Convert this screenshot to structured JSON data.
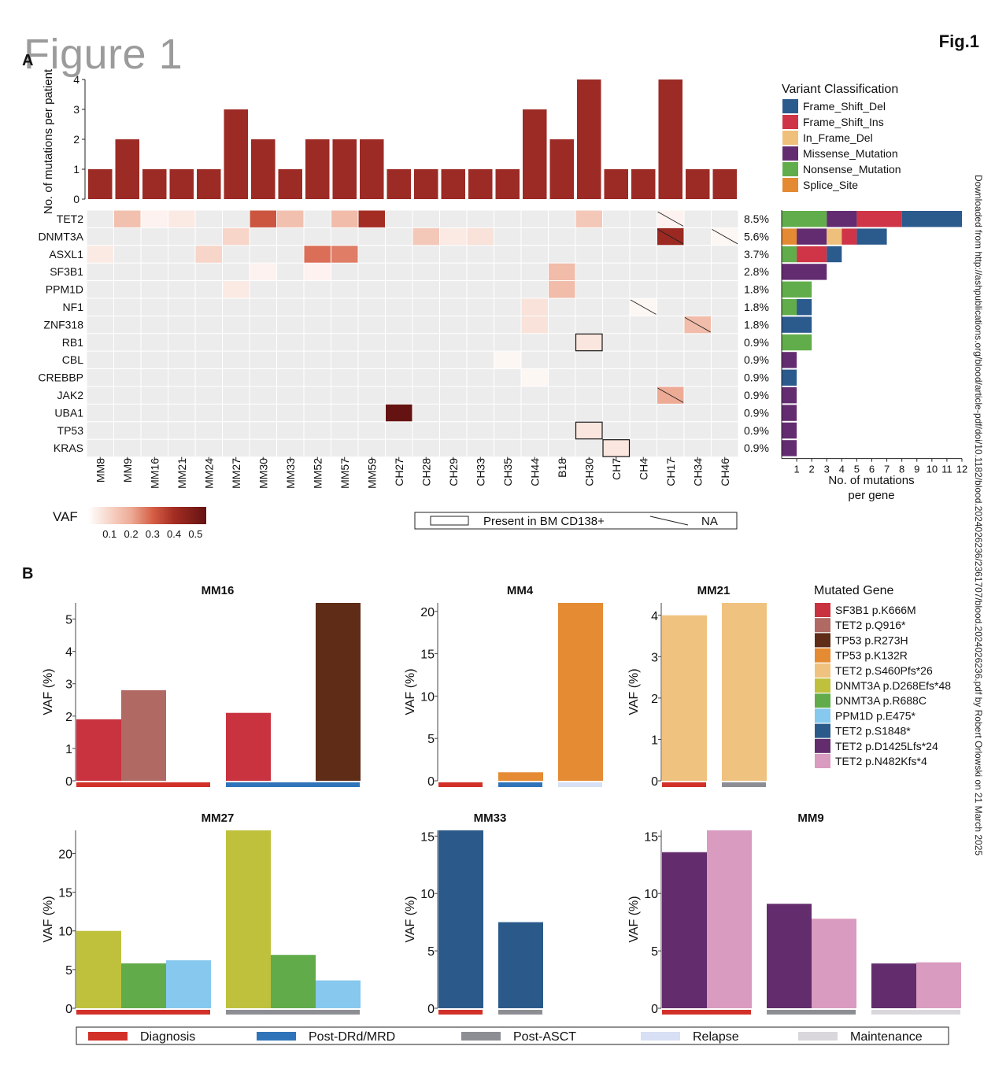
{
  "header": {
    "title": "Figure 1",
    "fig_label": "Fig.1",
    "panel_a": "A",
    "panel_b": "B"
  },
  "side_note": "Downloaded from http://ashpublications.org/blood/article-pdf/doi/10.1182/blood.2024026236/2361707/blood.2024026236.pdf by Robert Orlowski on 21 March 2025",
  "colors": {
    "bar": "#9c2a25",
    "Frame_Shift_Del": "#2b5a8d",
    "Frame_Shift_Ins": "#cf3546",
    "In_Frame_Del": "#efc07c",
    "Missense_Mutation": "#632c70",
    "Nonsense_Mutation": "#62ad4b",
    "Splice_Site": "#e38a33",
    "heat_bg": "#ececec",
    "Diagnosis": "#d2312a",
    "Post-DRd/MRD": "#2f74b9",
    "Post-ASCT": "#8c8e93",
    "Relapse": "#d7e0f4",
    "Maintenance": "#d9d7dc"
  },
  "chart_data": [
    {
      "type": "heatmap",
      "panel": "A",
      "patients": [
        "MM8",
        "MM9",
        "MM16",
        "MM21",
        "MM24",
        "MM27",
        "MM30",
        "MM33",
        "MM52",
        "MM57",
        "MM59",
        "CH27",
        "CH28",
        "CH29",
        "CH33",
        "CH35",
        "CH44",
        "B18",
        "CH30",
        "CH7",
        "CH4",
        "CH17",
        "CH34",
        "CH46"
      ],
      "genes": [
        "TET2",
        "DNMT3A",
        "ASXL1",
        "SF3B1",
        "PPM1D",
        "NF1",
        "ZNF318",
        "RB1",
        "CBL",
        "CREBBP",
        "JAK2",
        "UBA1",
        "TP53",
        "KRAS"
      ],
      "gene_percentages": [
        "8.5%",
        "5.6%",
        "3.7%",
        "2.8%",
        "1.8%",
        "1.8%",
        "1.8%",
        "0.9%",
        "0.9%",
        "0.9%",
        "0.9%",
        "0.9%",
        "0.9%",
        "0.9%"
      ],
      "mutations_per_patient": {
        "ylabel": "No. of mutations per patient",
        "ylim": [
          0,
          4
        ],
        "yticks": [
          0,
          1,
          2,
          3,
          4
        ],
        "values": [
          1,
          2,
          1,
          1,
          1,
          3,
          2,
          1,
          2,
          2,
          2,
          1,
          1,
          1,
          1,
          1,
          3,
          2,
          4,
          1,
          1,
          4,
          1,
          1
        ]
      },
      "vaf_cells": [
        {
          "gene": "TET2",
          "patient": "MM9",
          "vaf": 0.15
        },
        {
          "gene": "TET2",
          "patient": "MM16",
          "vaf": 0.03
        },
        {
          "gene": "TET2",
          "patient": "MM21",
          "vaf": 0.05
        },
        {
          "gene": "TET2",
          "patient": "MM30",
          "vaf": 0.32
        },
        {
          "gene": "TET2",
          "patient": "MM33",
          "vaf": 0.15
        },
        {
          "gene": "TET2",
          "patient": "MM57",
          "vaf": 0.16
        },
        {
          "gene": "TET2",
          "patient": "MM59",
          "vaf": 0.4
        },
        {
          "gene": "TET2",
          "patient": "CH30",
          "vaf": 0.13
        },
        {
          "gene": "TET2",
          "patient": "CH17",
          "vaf": 0.03,
          "na": true
        },
        {
          "gene": "DNMT3A",
          "patient": "MM27",
          "vaf": 0.1
        },
        {
          "gene": "DNMT3A",
          "patient": "CH28",
          "vaf": 0.13
        },
        {
          "gene": "DNMT3A",
          "patient": "CH29",
          "vaf": 0.05
        },
        {
          "gene": "DNMT3A",
          "patient": "CH33",
          "vaf": 0.07
        },
        {
          "gene": "DNMT3A",
          "patient": "CH17",
          "vaf": 0.42,
          "na": true
        },
        {
          "gene": "DNMT3A",
          "patient": "CH46",
          "vaf": 0.02,
          "na": true
        },
        {
          "gene": "ASXL1",
          "patient": "MM8",
          "vaf": 0.05
        },
        {
          "gene": "ASXL1",
          "patient": "MM24",
          "vaf": 0.1
        },
        {
          "gene": "ASXL1",
          "patient": "MM52",
          "vaf": 0.28
        },
        {
          "gene": "ASXL1",
          "patient": "MM57",
          "vaf": 0.26
        },
        {
          "gene": "SF3B1",
          "patient": "MM30",
          "vaf": 0.03
        },
        {
          "gene": "SF3B1",
          "patient": "MM52",
          "vaf": 0.03
        },
        {
          "gene": "SF3B1",
          "patient": "B18",
          "vaf": 0.16
        },
        {
          "gene": "PPM1D",
          "patient": "MM27",
          "vaf": 0.05
        },
        {
          "gene": "PPM1D",
          "patient": "B18",
          "vaf": 0.16
        },
        {
          "gene": "NF1",
          "patient": "CH44",
          "vaf": 0.07
        },
        {
          "gene": "NF1",
          "patient": "CH4",
          "vaf": 0.02,
          "na": true
        },
        {
          "gene": "ZNF318",
          "patient": "CH44",
          "vaf": 0.07
        },
        {
          "gene": "ZNF318",
          "patient": "CH34",
          "vaf": 0.16,
          "na": true
        },
        {
          "gene": "RB1",
          "patient": "CH30",
          "vaf": 0.06,
          "bm": true
        },
        {
          "gene": "CBL",
          "patient": "CH35",
          "vaf": 0.02
        },
        {
          "gene": "CREBBP",
          "patient": "CH44",
          "vaf": 0.02
        },
        {
          "gene": "JAK2",
          "patient": "CH17",
          "vaf": 0.2,
          "na": true
        },
        {
          "gene": "UBA1",
          "patient": "CH27",
          "vaf": 0.55
        },
        {
          "gene": "TP53",
          "patient": "CH30",
          "vaf": 0.06,
          "bm": true
        },
        {
          "gene": "KRAS",
          "patient": "CH7",
          "vaf": 0.06,
          "bm": true
        }
      ],
      "mutations_per_gene": {
        "xlabel": "No. of mutations per gene",
        "xlim": [
          0,
          12
        ],
        "xticks": [
          1,
          2,
          3,
          4,
          5,
          6,
          7,
          8,
          9,
          10,
          11,
          12
        ],
        "stacks": [
          [
            [
              "Nonsense_Mutation",
              3
            ],
            [
              "Missense_Mutation",
              2
            ],
            [
              "Frame_Shift_Ins",
              3
            ],
            [
              "Frame_Shift_Del",
              4
            ]
          ],
          [
            [
              "Splice_Site",
              1
            ],
            [
              "Missense_Mutation",
              2
            ],
            [
              "In_Frame_Del",
              1
            ],
            [
              "Frame_Shift_Ins",
              1
            ],
            [
              "Frame_Shift_Del",
              2
            ]
          ],
          [
            [
              "Nonsense_Mutation",
              1
            ],
            [
              "Frame_Shift_Ins",
              2
            ],
            [
              "Frame_Shift_Del",
              1
            ]
          ],
          [
            [
              "Missense_Mutation",
              3
            ]
          ],
          [
            [
              "Nonsense_Mutation",
              2
            ]
          ],
          [
            [
              "Nonsense_Mutation",
              1
            ],
            [
              "Frame_Shift_Del",
              1
            ]
          ],
          [
            [
              "Frame_Shift_Del",
              2
            ]
          ],
          [
            [
              "Nonsense_Mutation",
              2
            ]
          ],
          [
            [
              "Missense_Mutation",
              1
            ]
          ],
          [
            [
              "Frame_Shift_Del",
              1
            ]
          ],
          [
            [
              "Missense_Mutation",
              1
            ]
          ],
          [
            [
              "Missense_Mutation",
              1
            ]
          ],
          [
            [
              "Missense_Mutation",
              1
            ]
          ],
          [
            [
              "Missense_Mutation",
              1
            ]
          ]
        ]
      },
      "variant_legend": {
        "title": "Variant Classification",
        "items": [
          "Frame_Shift_Del",
          "Frame_Shift_Ins",
          "In_Frame_Del",
          "Missense_Mutation",
          "Nonsense_Mutation",
          "Splice_Site"
        ]
      },
      "vaf_legend": {
        "title": "VAF",
        "ticks": [
          "0.1",
          "0.2",
          "0.3",
          "0.4",
          "0.5"
        ]
      },
      "key_legend": {
        "present": "Present in BM CD138+",
        "na": "NA"
      }
    },
    {
      "type": "bar",
      "panel": "B",
      "ylabel": "VAF (%)",
      "stage_legend": [
        "Diagnosis",
        "Post-DRd/MRD",
        "Post-ASCT",
        "Relapse",
        "Maintenance"
      ],
      "gene_legend": {
        "title": "Mutated Gene",
        "items": [
          {
            "label": "SF3B1 p.K666M",
            "color": "#c9323f"
          },
          {
            "label": "TET2 p.Q916*",
            "color": "#b06a63"
          },
          {
            "label": "TP53 p.R273H",
            "color": "#5e2c17"
          },
          {
            "label": "TP53 p.K132R",
            "color": "#e48b33"
          },
          {
            "label": "TET2 p.S460Pfs*26",
            "color": "#f0c27f"
          },
          {
            "label": "DNMT3A p.D268Efs*48",
            "color": "#bfc13d"
          },
          {
            "label": "DNMT3A p.R688C",
            "color": "#61ab4b"
          },
          {
            "label": "PPM1D p.E475*",
            "color": "#86c8ee"
          },
          {
            "label": "TET2 p.S1848*",
            "color": "#2b5a8a"
          },
          {
            "label": "TET2 p.D1425Lfs*24",
            "color": "#632c6c"
          },
          {
            "label": "TET2 p.N482Kfs*4",
            "color": "#d99bbf"
          }
        ]
      },
      "charts": [
        {
          "title": "MM16",
          "ylim": [
            0,
            5.5
          ],
          "yticks": [
            0,
            1,
            2,
            3,
            4,
            5
          ],
          "groups": [
            {
              "stage": "Diagnosis",
              "values": [
                1.9,
                2.8,
                0
              ]
            },
            {
              "stage": "Post-DRd/MRD",
              "values": [
                2.1,
                0,
                5.5
              ]
            }
          ],
          "gene_colors": [
            "#c9323f",
            "#b06a63",
            "#5e2c17"
          ]
        },
        {
          "title": "MM4",
          "ylim": [
            0,
            21
          ],
          "yticks": [
            0,
            5,
            10,
            15,
            20
          ],
          "groups": [
            {
              "stage": "Diagnosis",
              "values": [
                0
              ]
            },
            {
              "stage": "Post-DRd/MRD",
              "values": [
                1
              ]
            },
            {
              "stage": "Relapse",
              "values": [
                21
              ]
            }
          ],
          "gene_colors": [
            "#e48b33"
          ]
        },
        {
          "title": "MM21",
          "ylim": [
            0,
            4.3
          ],
          "yticks": [
            0,
            1,
            2,
            3,
            4
          ],
          "groups": [
            {
              "stage": "Diagnosis",
              "values": [
                4.0
              ]
            },
            {
              "stage": "Post-ASCT",
              "values": [
                4.3
              ]
            }
          ],
          "gene_colors": [
            "#f0c27f"
          ]
        },
        {
          "title": "MM27",
          "ylim": [
            0,
            23
          ],
          "yticks": [
            0,
            5,
            10,
            15,
            20
          ],
          "groups": [
            {
              "stage": "Diagnosis",
              "values": [
                10,
                5.8,
                6.2
              ]
            },
            {
              "stage": "Post-ASCT",
              "values": [
                23,
                6.9,
                3.6
              ]
            }
          ],
          "gene_colors": [
            "#bfc13d",
            "#61ab4b",
            "#86c8ee"
          ]
        },
        {
          "title": "MM33",
          "ylim": [
            0,
            15.5
          ],
          "yticks": [
            0,
            5,
            10,
            15
          ],
          "groups": [
            {
              "stage": "Diagnosis",
              "values": [
                15.5
              ]
            },
            {
              "stage": "Post-ASCT",
              "values": [
                7.5
              ]
            }
          ],
          "gene_colors": [
            "#2b5a8a"
          ]
        },
        {
          "title": "MM9",
          "ylim": [
            0,
            15.5
          ],
          "yticks": [
            0,
            5,
            10,
            15
          ],
          "groups": [
            {
              "stage": "Diagnosis",
              "values": [
                13.6,
                15.5
              ]
            },
            {
              "stage": "Post-ASCT",
              "values": [
                9.1,
                7.8
              ]
            },
            {
              "stage": "Maintenance",
              "values": [
                3.9,
                4.0
              ]
            }
          ],
          "gene_colors": [
            "#632c6c",
            "#d99bbf"
          ]
        }
      ]
    }
  ]
}
